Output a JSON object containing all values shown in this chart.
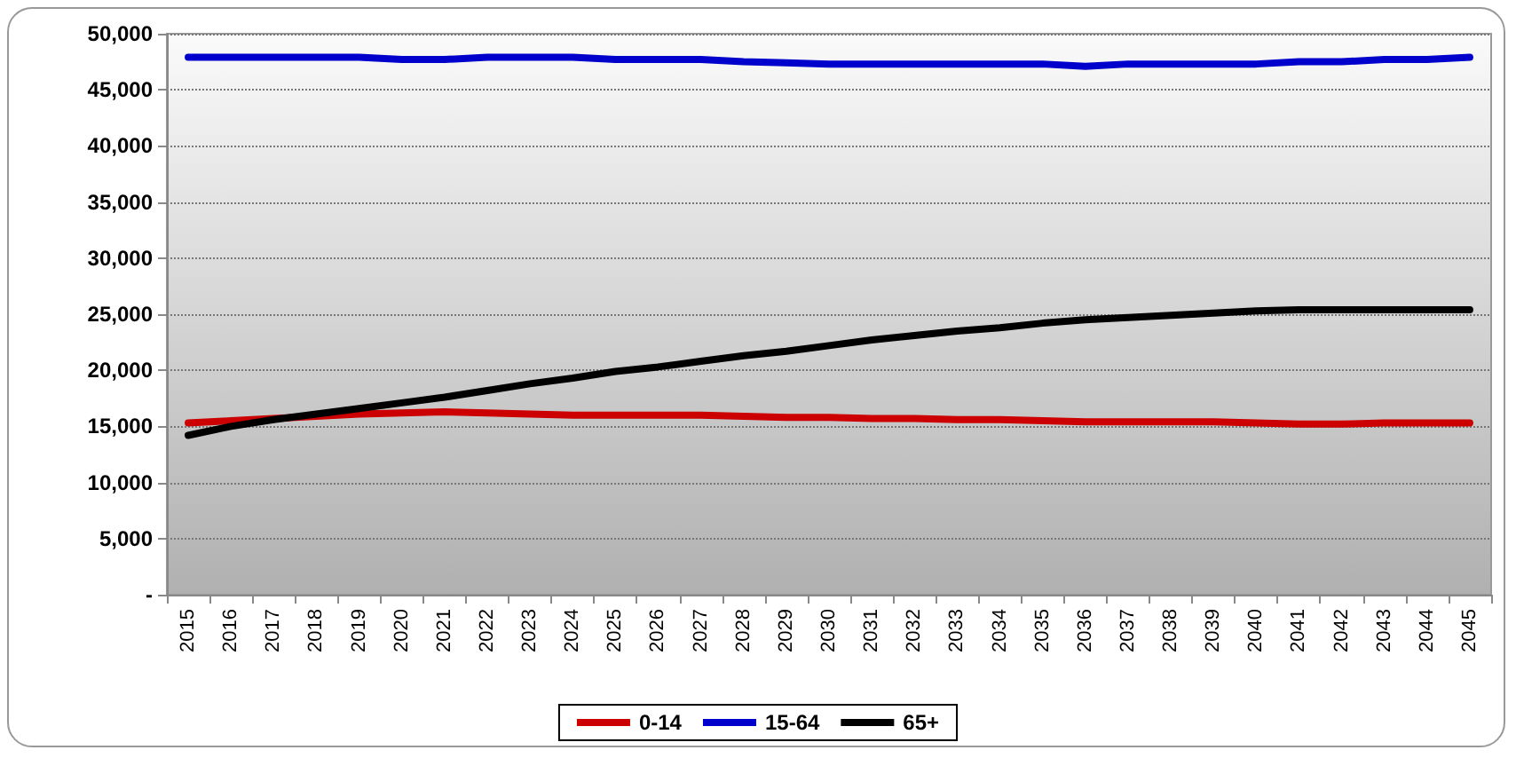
{
  "chart_data": {
    "type": "line",
    "categories": [
      "2015",
      "2016",
      "2017",
      "2018",
      "2019",
      "2020",
      "2021",
      "2022",
      "2023",
      "2024",
      "2025",
      "2026",
      "2027",
      "2028",
      "2029",
      "2030",
      "2031",
      "2032",
      "2033",
      "2034",
      "2035",
      "2036",
      "2037",
      "2038",
      "2039",
      "2040",
      "2041",
      "2042",
      "2043",
      "2044",
      "2045"
    ],
    "series": [
      {
        "name": "0-14",
        "color": "#cc0000",
        "values": [
          15300,
          15500,
          15700,
          15900,
          16100,
          16200,
          16300,
          16200,
          16100,
          16000,
          16000,
          16000,
          16000,
          15900,
          15800,
          15800,
          15700,
          15700,
          15600,
          15600,
          15500,
          15400,
          15400,
          15400,
          15400,
          15300,
          15200,
          15200,
          15300,
          15300,
          15300
        ]
      },
      {
        "name": "15-64",
        "color": "#0000cc",
        "values": [
          47900,
          47900,
          47900,
          47900,
          47900,
          47700,
          47700,
          47900,
          47900,
          47900,
          47700,
          47700,
          47700,
          47500,
          47400,
          47300,
          47300,
          47300,
          47300,
          47300,
          47300,
          47100,
          47300,
          47300,
          47300,
          47300,
          47500,
          47500,
          47700,
          47700,
          47900
        ]
      },
      {
        "name": "65+",
        "color": "#000000",
        "values": [
          14200,
          15000,
          15600,
          16100,
          16600,
          17100,
          17600,
          18200,
          18800,
          19300,
          19900,
          20300,
          20800,
          21300,
          21700,
          22200,
          22700,
          23100,
          23500,
          23800,
          24200,
          24500,
          24700,
          24900,
          25100,
          25300,
          25400,
          25400,
          25400,
          25400,
          25400
        ]
      }
    ],
    "ylim": [
      0,
      50000
    ],
    "yticks": [
      {
        "value": 0,
        "label": "-"
      },
      {
        "value": 5000,
        "label": "5,000"
      },
      {
        "value": 10000,
        "label": "10,000"
      },
      {
        "value": 15000,
        "label": "15,000"
      },
      {
        "value": 20000,
        "label": "20,000"
      },
      {
        "value": 25000,
        "label": "25,000"
      },
      {
        "value": 30000,
        "label": "30,000"
      },
      {
        "value": 35000,
        "label": "35,000"
      },
      {
        "value": 40000,
        "label": "40,000"
      },
      {
        "value": 45000,
        "label": "45,000"
      },
      {
        "value": 50000,
        "label": "50,000"
      }
    ],
    "grid": "y",
    "legend": "bottom",
    "marker": "none",
    "line_style": "solid"
  }
}
